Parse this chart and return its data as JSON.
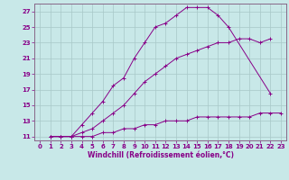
{
  "xlabel": "Windchill (Refroidissement éolien,°C)",
  "bg_color": "#c8e8e8",
  "grid_color": "#a8c8c8",
  "line_color": "#880088",
  "spine_color": "#886688",
  "xlim": [
    -0.5,
    23.5
  ],
  "ylim": [
    10.5,
    28.0
  ],
  "yticks": [
    11,
    13,
    15,
    17,
    19,
    21,
    23,
    25,
    27
  ],
  "xticks": [
    0,
    1,
    2,
    3,
    4,
    5,
    6,
    7,
    8,
    9,
    10,
    11,
    12,
    13,
    14,
    15,
    16,
    17,
    18,
    19,
    20,
    21,
    22,
    23
  ],
  "curve1_x": [
    1,
    2,
    3,
    4,
    5,
    6,
    7,
    8,
    9,
    10,
    11,
    12,
    13,
    14,
    15,
    16,
    17,
    18,
    22
  ],
  "curve1_y": [
    11,
    11,
    11,
    12.5,
    14.0,
    15.5,
    17.5,
    18.5,
    21.0,
    23.0,
    25.0,
    25.5,
    26.5,
    27.5,
    27.5,
    27.5,
    26.5,
    25.0,
    16.5
  ],
  "curve2_x": [
    1,
    2,
    3,
    4,
    5,
    6,
    7,
    8,
    9,
    10,
    11,
    12,
    13,
    14,
    15,
    16,
    17,
    18,
    19,
    20,
    21,
    22
  ],
  "curve2_y": [
    11,
    11,
    11,
    11.5,
    12.0,
    13.0,
    14.0,
    15.0,
    16.5,
    18.0,
    19.0,
    20.0,
    21.0,
    21.5,
    22.0,
    22.5,
    23.0,
    23.0,
    23.5,
    23.5,
    23.0,
    23.5
  ],
  "curve3_x": [
    1,
    2,
    3,
    4,
    5,
    6,
    7,
    8,
    9,
    10,
    11,
    12,
    13,
    14,
    15,
    16,
    17,
    18,
    19,
    20,
    21,
    22,
    23
  ],
  "curve3_y": [
    11,
    11,
    11,
    11,
    11,
    11.5,
    11.5,
    12.0,
    12.0,
    12.5,
    12.5,
    13.0,
    13.0,
    13.0,
    13.5,
    13.5,
    13.5,
    13.5,
    13.5,
    13.5,
    14.0,
    14.0,
    14.0
  ],
  "marker": "+",
  "markersize": 3,
  "markeredgewidth": 0.7,
  "linewidth": 0.7,
  "tick_fontsize": 5.0,
  "xlabel_fontsize": 5.5
}
